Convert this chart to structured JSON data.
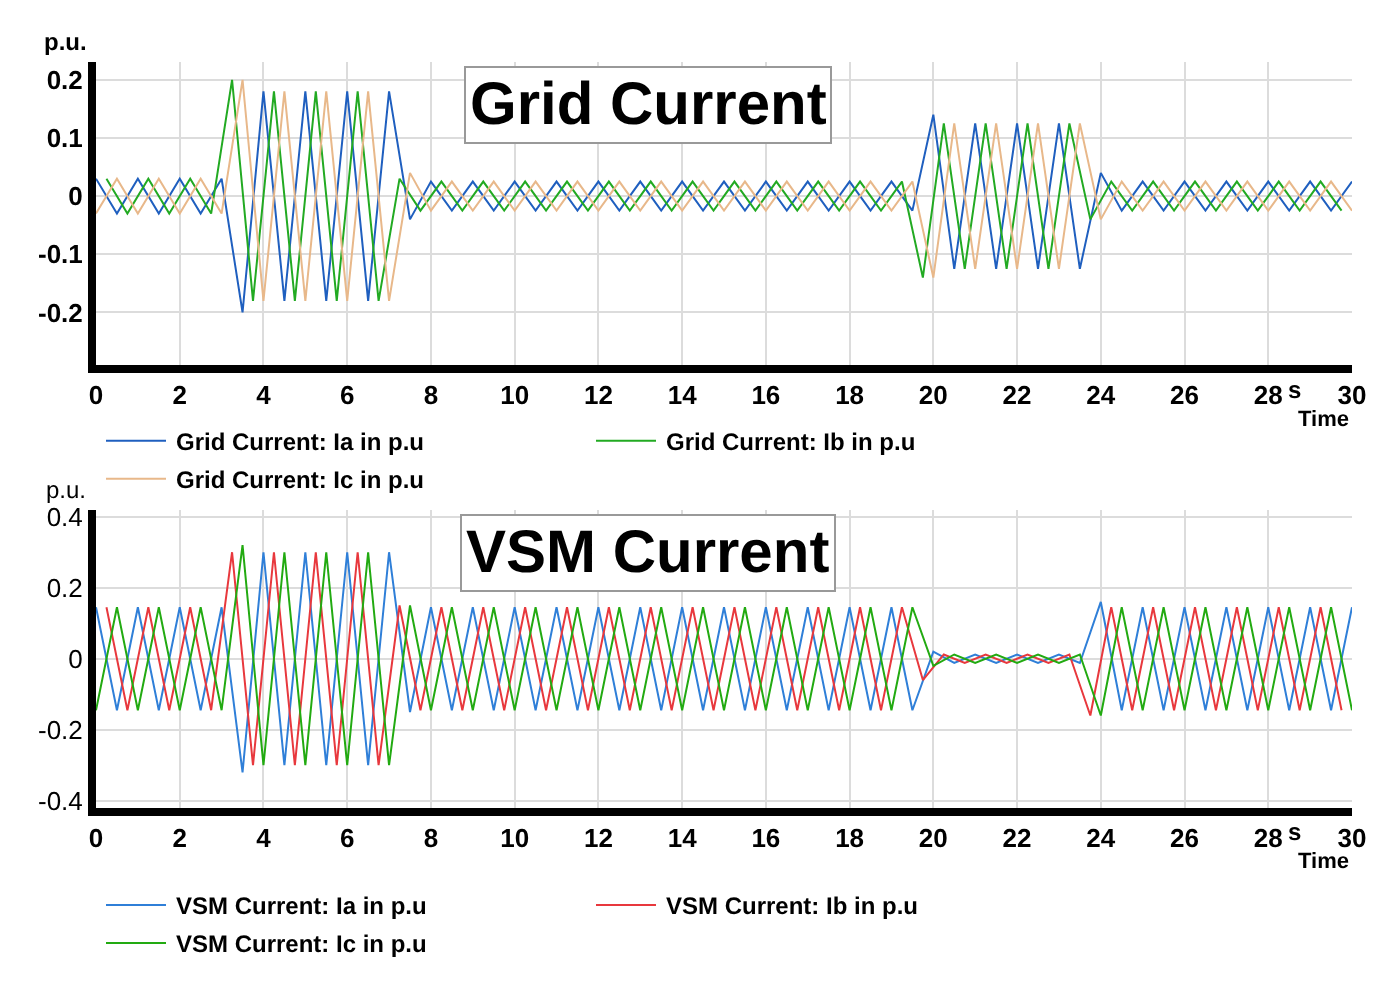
{
  "chart_data": [
    {
      "type": "line",
      "title": "Grid Current",
      "xlabel": "Time",
      "ylabel": "p.u.",
      "annotations": [
        "s"
      ],
      "legend": "bottom",
      "grid": true,
      "marker": "none",
      "line_style": "solid",
      "xlim": [
        0,
        30
      ],
      "xticks": [
        0,
        2,
        4,
        6,
        8,
        10,
        12,
        14,
        16,
        18,
        20,
        22,
        24,
        26,
        28,
        30
      ],
      "ylim": [
        -0.29,
        0.23
      ],
      "yticks": [
        -0.2,
        -0.1,
        0,
        0.1,
        0.2
      ],
      "x": [
        0,
        0.5,
        1,
        1.5,
        2,
        2.5,
        3,
        3.5,
        4,
        4.5,
        5,
        5.5,
        6,
        6.5,
        7,
        7.5,
        8,
        8.5,
        9,
        9.5,
        10,
        10.5,
        11,
        11.5,
        12,
        12.5,
        13,
        13.5,
        14,
        14.5,
        15,
        15.5,
        16,
        16.5,
        17,
        17.5,
        18,
        18.5,
        19,
        19.5,
        20,
        20.5,
        21,
        21.5,
        22,
        22.5,
        23,
        23.5,
        24,
        24.5,
        25,
        25.5,
        26,
        26.5,
        27,
        27.5,
        28,
        28.5,
        29,
        29.5,
        30
      ],
      "series": [
        {
          "name": "Grid Current: Ia in p.u",
          "color": "#1f5fbf",
          "values": [
            0.03,
            -0.03,
            0.03,
            -0.03,
            0.03,
            -0.03,
            0.03,
            -0.2,
            0.18,
            -0.18,
            0.18,
            -0.18,
            0.18,
            -0.18,
            0.18,
            -0.04,
            0.025,
            -0.025,
            0.025,
            -0.025,
            0.025,
            -0.025,
            0.025,
            -0.025,
            0.025,
            -0.025,
            0.025,
            -0.025,
            0.025,
            -0.025,
            0.025,
            -0.025,
            0.025,
            -0.025,
            0.025,
            -0.025,
            0.025,
            -0.025,
            0.025,
            -0.025,
            0.14,
            -0.125,
            0.125,
            -0.125,
            0.125,
            -0.125,
            0.125,
            -0.125,
            0.04,
            -0.025,
            0.025,
            -0.025,
            0.025,
            -0.025,
            0.025,
            -0.025,
            0.025,
            -0.025,
            0.025,
            -0.025,
            0.025
          ]
        },
        {
          "name": "Grid Current: Ib in p.u",
          "color": "#22aa22",
          "x": [
            0.25,
            0.75,
            1.25,
            1.75,
            2.25,
            2.75,
            3.25,
            3.75,
            4.25,
            4.75,
            5.25,
            5.75,
            6.25,
            6.75,
            7.25,
            7.75,
            8.25,
            8.75,
            9.25,
            9.75,
            10.25,
            10.75,
            11.25,
            11.75,
            12.25,
            12.75,
            13.25,
            13.75,
            14.25,
            14.75,
            15.25,
            15.75,
            16.25,
            16.75,
            17.25,
            17.75,
            18.25,
            18.75,
            19.25,
            19.75,
            20.25,
            20.75,
            21.25,
            21.75,
            22.25,
            22.75,
            23.25,
            23.75,
            24.25,
            24.75,
            25.25,
            25.75,
            26.25,
            26.75,
            27.25,
            27.75,
            28.25,
            28.75,
            29.25,
            29.75
          ],
          "values": [
            0.03,
            -0.03,
            0.03,
            -0.03,
            0.03,
            -0.03,
            0.2,
            -0.18,
            0.18,
            -0.18,
            0.18,
            -0.18,
            0.18,
            -0.18,
            0.03,
            -0.025,
            0.025,
            -0.025,
            0.025,
            -0.025,
            0.025,
            -0.025,
            0.025,
            -0.025,
            0.025,
            -0.025,
            0.025,
            -0.025,
            0.025,
            -0.025,
            0.025,
            -0.025,
            0.025,
            -0.025,
            0.025,
            -0.025,
            0.025,
            -0.025,
            0.025,
            -0.14,
            0.125,
            -0.125,
            0.125,
            -0.125,
            0.125,
            -0.125,
            0.125,
            -0.04,
            0.025,
            -0.025,
            0.025,
            -0.025,
            0.025,
            -0.025,
            0.025,
            -0.025,
            0.025,
            -0.025,
            0.025,
            -0.025
          ]
        },
        {
          "name": "Grid Current: Ic in p.u",
          "color": "#e8b88a",
          "values": [
            -0.03,
            0.03,
            -0.03,
            0.03,
            -0.03,
            0.03,
            -0.03,
            0.2,
            -0.18,
            0.18,
            -0.18,
            0.18,
            -0.18,
            0.18,
            -0.18,
            0.04,
            -0.025,
            0.025,
            -0.025,
            0.025,
            -0.025,
            0.025,
            -0.025,
            0.025,
            -0.025,
            0.025,
            -0.025,
            0.025,
            -0.025,
            0.025,
            -0.025,
            0.025,
            -0.025,
            0.025,
            -0.025,
            0.025,
            -0.025,
            0.025,
            -0.025,
            0.025,
            -0.14,
            0.125,
            -0.125,
            0.125,
            -0.125,
            0.125,
            -0.125,
            0.125,
            -0.04,
            0.025,
            -0.025,
            0.025,
            -0.025,
            0.025,
            -0.025,
            0.025,
            -0.025,
            0.025,
            -0.025,
            0.025,
            -0.025
          ]
        }
      ]
    },
    {
      "type": "line",
      "title": "VSM Current",
      "xlabel": "Time",
      "ylabel": "p.u.",
      "annotations": [
        "s"
      ],
      "legend": "bottom",
      "grid": true,
      "marker": "none",
      "line_style": "solid",
      "xlim": [
        0,
        30
      ],
      "xticks": [
        0,
        2,
        4,
        6,
        8,
        10,
        12,
        14,
        16,
        18,
        20,
        22,
        24,
        26,
        28,
        30
      ],
      "ylim": [
        -0.42,
        0.42
      ],
      "yticks": [
        -0.4,
        -0.2,
        0,
        0.2,
        0.4
      ],
      "x": [
        0,
        0.5,
        1,
        1.5,
        2,
        2.5,
        3,
        3.5,
        4,
        4.5,
        5,
        5.5,
        6,
        6.5,
        7,
        7.5,
        8,
        8.5,
        9,
        9.5,
        10,
        10.5,
        11,
        11.5,
        12,
        12.5,
        13,
        13.5,
        14,
        14.5,
        15,
        15.5,
        16,
        16.5,
        17,
        17.5,
        18,
        18.5,
        19,
        19.5,
        20,
        20.5,
        21,
        21.5,
        22,
        22.5,
        23,
        23.5,
        24,
        24.5,
        25,
        25.5,
        26,
        26.5,
        27,
        27.5,
        28,
        28.5,
        29,
        29.5,
        30
      ],
      "series": [
        {
          "name": "VSM Current: Ia in p.u",
          "color": "#2f7fd8",
          "values": [
            0.145,
            -0.145,
            0.145,
            -0.145,
            0.145,
            -0.145,
            0.145,
            -0.32,
            0.3,
            -0.3,
            0.3,
            -0.3,
            0.3,
            -0.3,
            0.3,
            -0.15,
            0.145,
            -0.145,
            0.145,
            -0.145,
            0.145,
            -0.145,
            0.145,
            -0.145,
            0.145,
            -0.145,
            0.145,
            -0.145,
            0.145,
            -0.145,
            0.145,
            -0.145,
            0.145,
            -0.145,
            0.145,
            -0.145,
            0.145,
            -0.145,
            0.145,
            -0.145,
            0.02,
            -0.012,
            0.012,
            -0.012,
            0.012,
            -0.012,
            0.012,
            -0.012,
            0.16,
            -0.145,
            0.145,
            -0.145,
            0.145,
            -0.145,
            0.145,
            -0.145,
            0.145,
            -0.145,
            0.145,
            -0.145,
            0.145
          ]
        },
        {
          "name": "VSM Current: Ib in p.u",
          "color": "#e8383d",
          "x": [
            0.25,
            0.75,
            1.25,
            1.75,
            2.25,
            2.75,
            3.25,
            3.75,
            4.25,
            4.75,
            5.25,
            5.75,
            6.25,
            6.75,
            7.25,
            7.75,
            8.25,
            8.75,
            9.25,
            9.75,
            10.25,
            10.75,
            11.25,
            11.75,
            12.25,
            12.75,
            13.25,
            13.75,
            14.25,
            14.75,
            15.25,
            15.75,
            16.25,
            16.75,
            17.25,
            17.75,
            18.25,
            18.75,
            19.25,
            19.75,
            20.25,
            20.75,
            21.25,
            21.75,
            22.25,
            22.75,
            23.25,
            23.75,
            24.25,
            24.75,
            25.25,
            25.75,
            26.25,
            26.75,
            27.25,
            27.75,
            28.25,
            28.75,
            29.25,
            29.75
          ],
          "values": [
            0.145,
            -0.145,
            0.145,
            -0.145,
            0.145,
            -0.145,
            0.3,
            -0.3,
            0.3,
            -0.3,
            0.3,
            -0.3,
            0.3,
            -0.3,
            0.15,
            -0.145,
            0.145,
            -0.145,
            0.145,
            -0.145,
            0.145,
            -0.145,
            0.145,
            -0.145,
            0.145,
            -0.145,
            0.145,
            -0.145,
            0.145,
            -0.145,
            0.145,
            -0.145,
            0.145,
            -0.145,
            0.145,
            -0.145,
            0.145,
            -0.145,
            0.145,
            -0.06,
            0.012,
            -0.012,
            0.012,
            -0.012,
            0.012,
            -0.012,
            0.012,
            -0.16,
            0.145,
            -0.145,
            0.145,
            -0.145,
            0.145,
            -0.145,
            0.145,
            -0.145,
            0.145,
            -0.145,
            0.145,
            -0.145
          ]
        },
        {
          "name": "VSM Current: Ic in p.u",
          "color": "#22aa11",
          "values": [
            -0.145,
            0.145,
            -0.145,
            0.145,
            -0.145,
            0.145,
            -0.145,
            0.32,
            -0.3,
            0.3,
            -0.3,
            0.3,
            -0.3,
            0.3,
            -0.3,
            0.15,
            -0.145,
            0.145,
            -0.145,
            0.145,
            -0.145,
            0.145,
            -0.145,
            0.145,
            -0.145,
            0.145,
            -0.145,
            0.145,
            -0.145,
            0.145,
            -0.145,
            0.145,
            -0.145,
            0.145,
            -0.145,
            0.145,
            -0.145,
            0.145,
            -0.145,
            0.145,
            -0.02,
            0.012,
            -0.012,
            0.012,
            -0.012,
            0.012,
            -0.012,
            0.012,
            -0.16,
            0.145,
            -0.145,
            0.145,
            -0.145,
            0.145,
            -0.145,
            0.145,
            -0.145,
            0.145,
            -0.145,
            0.145,
            -0.145
          ]
        }
      ]
    }
  ]
}
